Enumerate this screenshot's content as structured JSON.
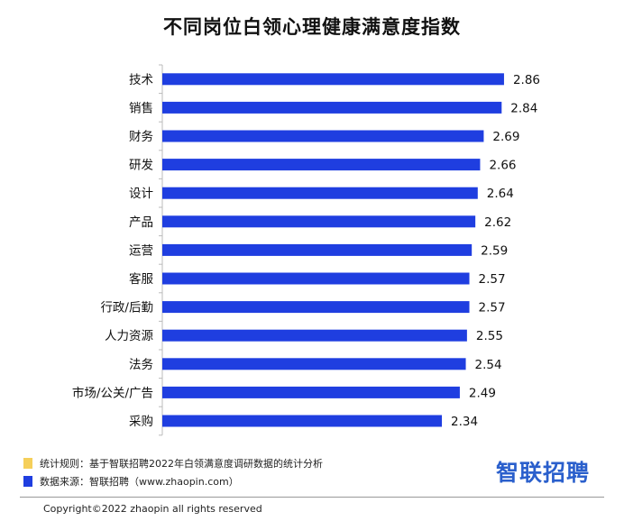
{
  "page": {
    "title": "不同岗位白领心理健康满意度指数",
    "legend": [
      {
        "label": "统计规则：基于智联招聘2022年白领满意度调研数据的统计分析",
        "color": "#f5cf5a"
      },
      {
        "label": "数据来源：智联招聘（www.zhaopin.com）",
        "color": "#1f3ee0"
      }
    ],
    "logo_text": "智联招聘",
    "copyright": "Copyright©2022 zhaopin all rights reserved"
  },
  "chart_data": {
    "type": "bar",
    "orientation": "horizontal",
    "title": "不同岗位白领心理健康满意度指数",
    "categories": [
      "技术",
      "销售",
      "财务",
      "研发",
      "设计",
      "产品",
      "运营",
      "客服",
      "行政/后勤",
      "人力资源",
      "法务",
      "市场/公关/广告",
      "采购"
    ],
    "values": [
      2.86,
      2.84,
      2.69,
      2.66,
      2.64,
      2.62,
      2.59,
      2.57,
      2.57,
      2.55,
      2.54,
      2.49,
      2.34
    ],
    "bar_color": "#1f3ee0",
    "xlim": [
      0,
      3.2
    ],
    "grid": false,
    "data_labels": true
  }
}
